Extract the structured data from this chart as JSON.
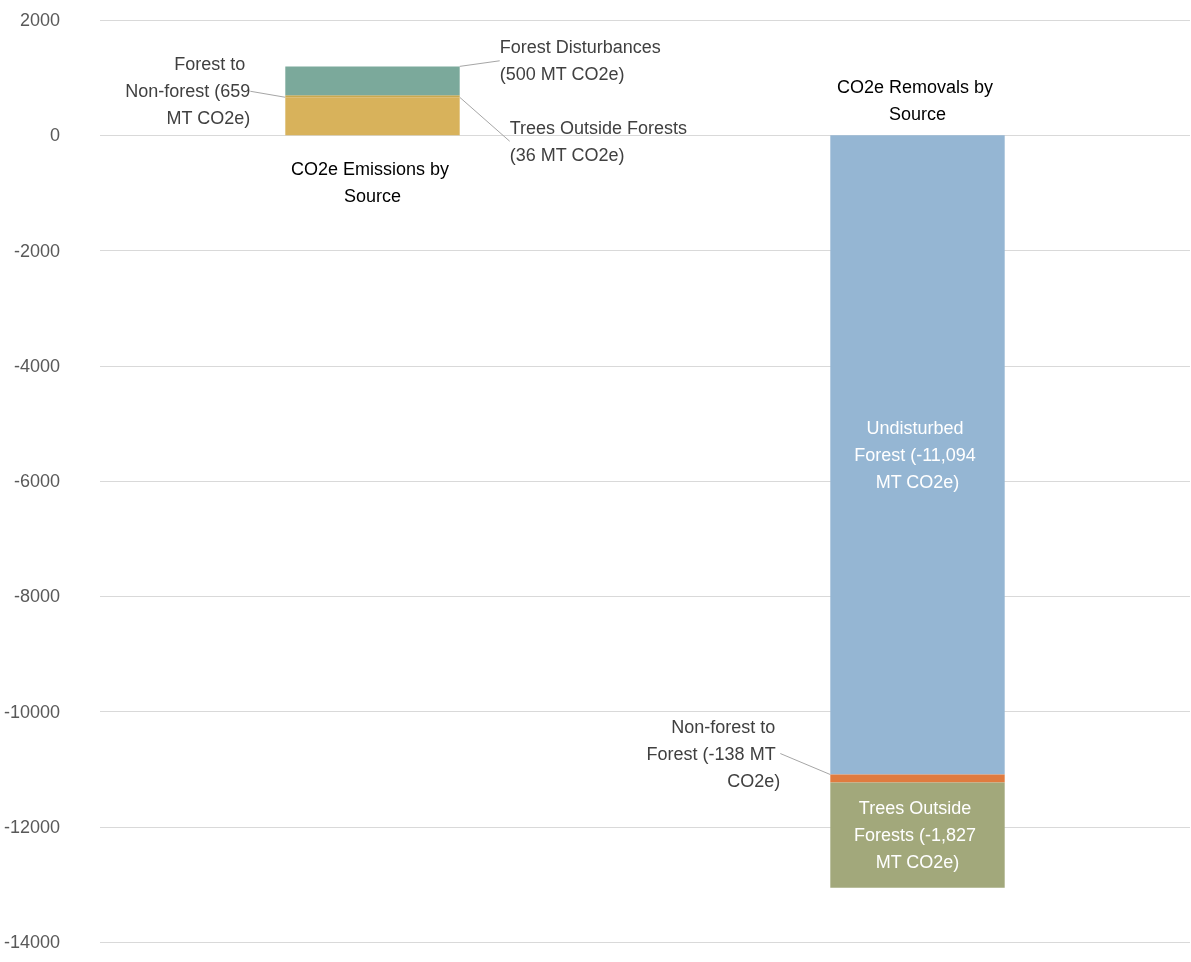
{
  "chart_data": {
    "type": "bar",
    "stacked": true,
    "categories": [
      "CO2e Emissions by Source",
      "CO2e Removals by Source"
    ],
    "series": [
      {
        "name": "Forest to Non-forest (659 MT CO2e)",
        "color": "#d8b25b",
        "values": [
          659,
          null
        ]
      },
      {
        "name": "Trees Outside Forests (36 MT CO2e)",
        "color": "#c9a94f",
        "values": [
          36,
          null
        ]
      },
      {
        "name": "Forest Disturbances (500 MT CO2e)",
        "color": "#7ba99b",
        "values": [
          500,
          null
        ]
      },
      {
        "name": "Undisturbed Forest (-11,094 MT CO2e)",
        "color": "#95b6d3",
        "values": [
          null,
          -11094
        ]
      },
      {
        "name": "Non-forest to Forest (-138 MT CO2e)",
        "color": "#e07b3f",
        "values": [
          null,
          -138
        ]
      },
      {
        "name": "Trees Outside Forests (-1,827 MT CO2e)",
        "color": "#a2a87b",
        "values": [
          null,
          -1827
        ]
      }
    ],
    "ylim": [
      -14000,
      2000
    ],
    "yticks": [
      -14000,
      -12000,
      -10000,
      -8000,
      -6000,
      -4000,
      -2000,
      0,
      2000
    ],
    "grid": "y",
    "legend": false
  }
}
